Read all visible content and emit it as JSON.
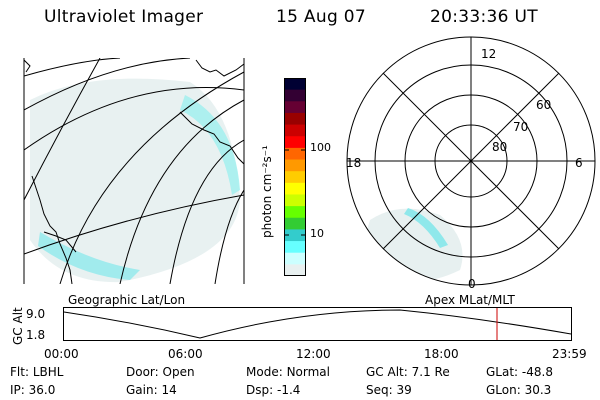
{
  "header": {
    "instrument": "Ultraviolet Imager",
    "date": "15 Aug 07",
    "time": "20:33:36 UT"
  },
  "geo_panel": {
    "caption": "Geographic Lat/Lon"
  },
  "colorbar": {
    "unit_label": "photon cm⁻²s⁻¹",
    "ticks": [
      "100",
      "10"
    ],
    "colors": [
      "#000033",
      "#330033",
      "#660033",
      "#990000",
      "#cc0000",
      "#ff0000",
      "#ff6600",
      "#ff9900",
      "#ffcc00",
      "#ffff00",
      "#ccff00",
      "#66ff00",
      "#33cc33",
      "#33cccc",
      "#66ffff",
      "#ccffff",
      "#e8f0f0"
    ]
  },
  "polar_panel": {
    "caption": "Apex MLat/MLT",
    "mlt_labels": {
      "top": "12",
      "bottom": "0",
      "left": "18",
      "right": "6"
    },
    "lat_labels": [
      "60",
      "70",
      "80"
    ]
  },
  "altitude_panel": {
    "y_axis_label": "GC Alt",
    "y_ticks": [
      "9.0",
      "1.8"
    ],
    "x_ticks": [
      "00:00",
      "06:00",
      "12:00",
      "18:00",
      "23:59"
    ],
    "marker_color": "#cc0000"
  },
  "status": {
    "row1": [
      {
        "label": "Flt:",
        "value": "LBHL"
      },
      {
        "label": "Door:",
        "value": "Open"
      },
      {
        "label": "Mode:",
        "value": "Normal"
      },
      {
        "label": "GC Alt:",
        "value": "7.1 Re"
      },
      {
        "label": "GLat:",
        "value": "-48.8"
      }
    ],
    "row2": [
      {
        "label": "IP:",
        "value": "36.0"
      },
      {
        "label": "Gain:",
        "value": "14"
      },
      {
        "label": "Dsp:",
        "value": "-1.4"
      },
      {
        "label": "Seq:",
        "value": "39"
      },
      {
        "label": "GLon:",
        "value": "30.3"
      }
    ]
  }
}
